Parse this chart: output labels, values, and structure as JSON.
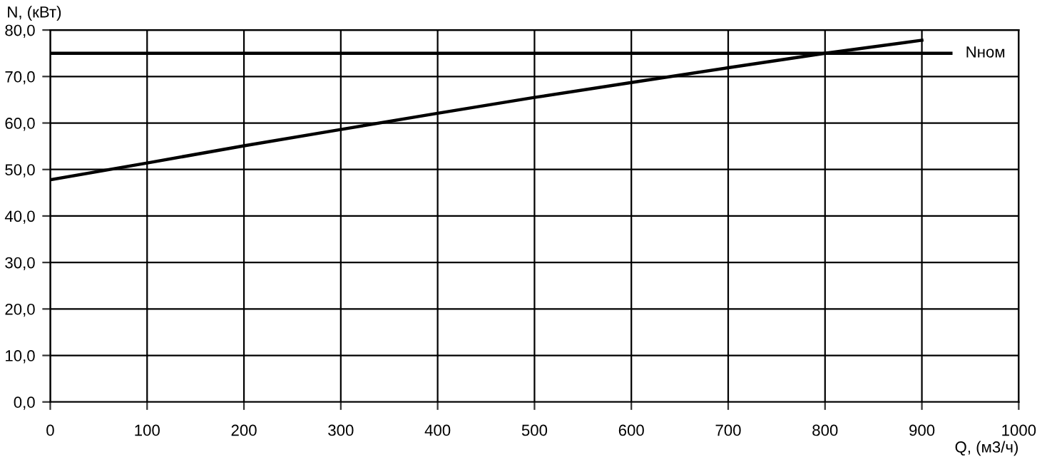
{
  "chart_data": {
    "type": "line",
    "xlabel": "Q, (м3/ч)",
    "ylabel": "N, (кВт)",
    "x": [
      0,
      100,
      200,
      300,
      400,
      500,
      600,
      700,
      800,
      900
    ],
    "series": [
      {
        "color": "#000000",
        "values": [
          47.8,
          51.4,
          55.1,
          58.6,
          62.1,
          65.5,
          68.7,
          71.9,
          75.0,
          77.8
        ]
      }
    ],
    "xlim": [
      0,
      1000
    ],
    "ylim": [
      0,
      80
    ],
    "xticks": [
      0,
      100,
      200,
      300,
      400,
      500,
      600,
      700,
      800,
      900,
      1000
    ],
    "yticks": [
      {
        "value": 0,
        "label": "0,0"
      },
      {
        "value": 10,
        "label": "10,0"
      },
      {
        "value": 20,
        "label": "20,0"
      },
      {
        "value": 30,
        "label": "30,0"
      },
      {
        "value": 40,
        "label": "40,0"
      },
      {
        "value": 50,
        "label": "50,0"
      },
      {
        "value": 60,
        "label": "60,0"
      },
      {
        "value": 70,
        "label": "70,0"
      },
      {
        "value": 80,
        "label": "80,0"
      }
    ],
    "ref_lines": [
      {
        "axis": "y",
        "value": 75,
        "label": "Nном",
        "color": "#000000"
      }
    ],
    "grid": true,
    "legend": false,
    "marker": "none",
    "line_style": "solid"
  }
}
